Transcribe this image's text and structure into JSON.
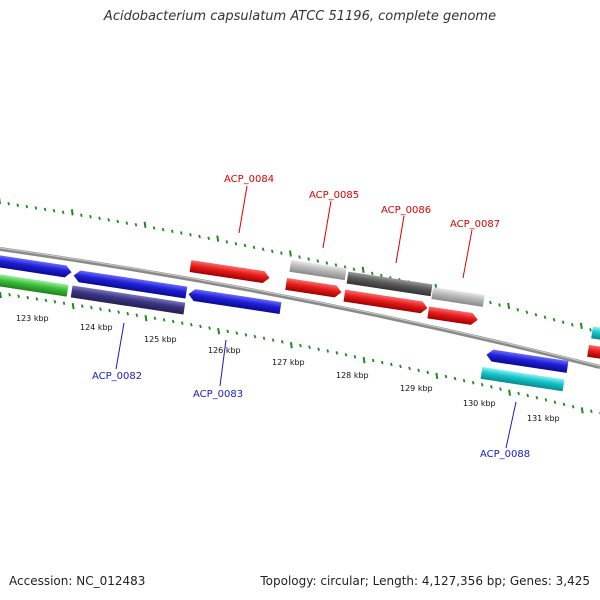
{
  "title": "Acidobacterium capsulatum ATCC 51196, complete genome",
  "footer": {
    "accession": "Accession: NC_012483",
    "stats": "Topology: circular; Length: 4,127,356 bp; Genes: 3,425"
  },
  "ticks": [
    "123 kbp",
    "124 kbp",
    "125 kbp",
    "126 kbp",
    "127 kbp",
    "128 kbp",
    "129 kbp",
    "130 kbp",
    "131 kbp"
  ],
  "genes": {
    "ACP_0082": "ACP_0082",
    "ACP_0083": "ACP_0083",
    "ACP_0084": "ACP_0084",
    "ACP_0085": "ACP_0085",
    "ACP_0086": "ACP_0086",
    "ACP_0087": "ACP_0087",
    "ACP_0088": "ACP_0088"
  },
  "colors": {
    "red": "#e51c1c",
    "blue": "#1f1fd6",
    "navy": "#3a3580",
    "green": "#3bbf3b",
    "cyan": "#16c4c8",
    "light_gray": "#b8b8b8",
    "dark_gray": "#5a5a5a",
    "backbone": "#8a8a8a",
    "gc_tick": "#1e8a1e"
  }
}
